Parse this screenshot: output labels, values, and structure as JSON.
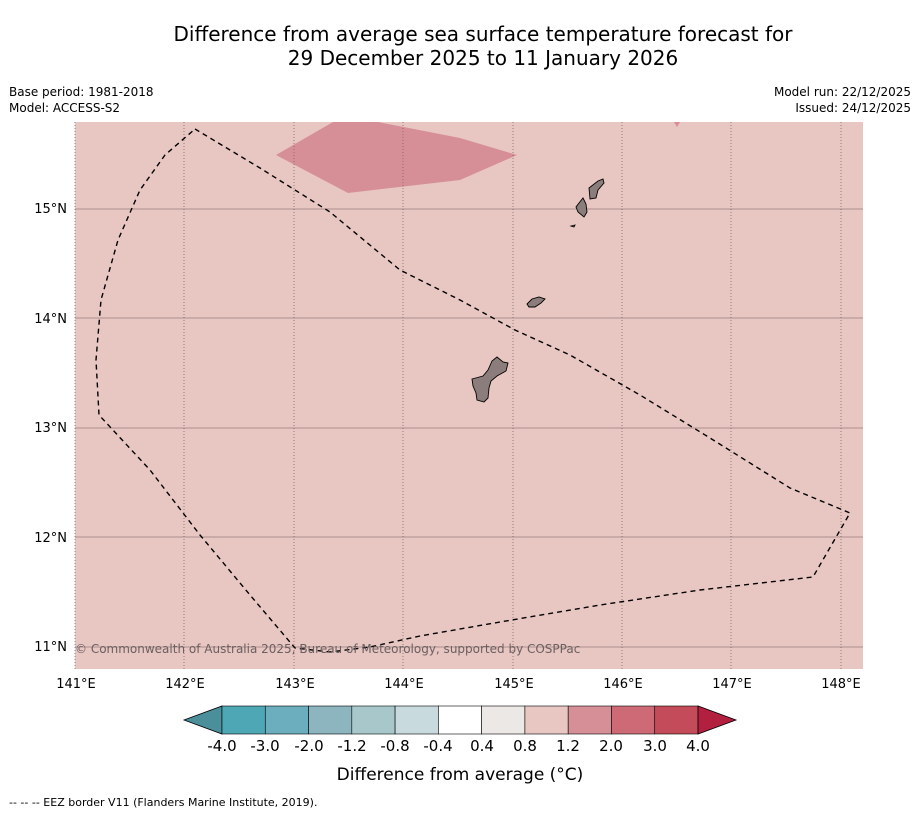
{
  "title": {
    "line1": "Difference from average sea surface temperature forecast for",
    "line2": "29 December 2025 to 11 January 2026"
  },
  "meta": {
    "base_period": "Base period: 1981-2018",
    "model": "Model: ACCESS-S2",
    "model_run": "Model run: 22/12/2025",
    "issued": "Issued: 24/12/2025"
  },
  "map": {
    "lat_labels": [
      "15°N",
      "14°N",
      "13°N",
      "12°N",
      "11°N"
    ],
    "lon_labels": [
      "141°E",
      "142°E",
      "143°E",
      "144°E",
      "145°E",
      "146°E",
      "147°E",
      "148°E"
    ],
    "copyright": "© Commonwealth of Australia 2025, Bureau of Meteorology, supported by COSPPac",
    "background_color": "#e8c6c2",
    "warm_patch_color": "#d68f96",
    "land_color": "#8a7d7c"
  },
  "colorbar": {
    "labels": [
      "-4.0",
      "-3.0",
      "-2.0",
      "-1.2",
      "-0.8",
      "-0.4",
      "0.4",
      "0.8",
      "1.2",
      "2.0",
      "3.0",
      "4.0"
    ],
    "colors": [
      "#4b8f9b",
      "#4ea7b5",
      "#6caebd",
      "#8cb5c0",
      "#a8c7cb",
      "#c8dadd",
      "#ffffff",
      "#ece8e6",
      "#e8c6c2",
      "#d68f96",
      "#cd6a76",
      "#c34b5a",
      "#b3203f"
    ],
    "label": "Difference from average (°C)"
  },
  "footer": {
    "legend": "-- -- -- EEZ border V11 (Flanders Marine Institute, 2019)."
  }
}
